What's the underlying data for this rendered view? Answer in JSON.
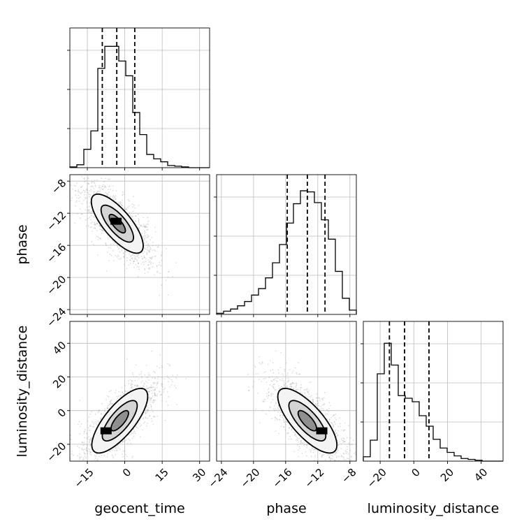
{
  "chart_data": {
    "type": "corner",
    "title": "",
    "parameters": [
      "geocent_time",
      "phase",
      "luminosity_distance"
    ],
    "axis_ranges": {
      "geocent_time": [
        -22,
        34
      ],
      "phase": [
        -24.6,
        -7.2
      ],
      "luminosity_distance": [
        -30,
        53
      ]
    },
    "ticks": {
      "geocent_time": [
        -15,
        0,
        15,
        30
      ],
      "phase": [
        -24,
        -20,
        -16,
        -12,
        -8
      ],
      "luminosity_distance": [
        -20,
        0,
        20,
        40
      ]
    },
    "tick_labels": {
      "geocent_time": [
        "−15",
        "0",
        "15",
        "30"
      ],
      "phase": [
        "−24",
        "−20",
        "−16",
        "−12",
        "−8"
      ],
      "luminosity_distance": [
        "−20",
        "0",
        "20",
        "40"
      ]
    },
    "quantiles": {
      "geocent_time": [
        -9.0,
        -3.2,
        4.0
      ],
      "phase": [
        -15.8,
        -13.3,
        -11.1
      ],
      "luminosity_distance": [
        -14.5,
        -5.5,
        9.0
      ]
    },
    "histograms": {
      "geocent_time": {
        "bin_edges": [
          -22,
          -19.2,
          -16.4,
          -13.6,
          -10.8,
          -8,
          -5.2,
          -2.4,
          0.4,
          3.2,
          6,
          8.8,
          11.6,
          14.4,
          17.2,
          20,
          22.8,
          25.6,
          28.4,
          31.2,
          34
        ],
        "counts": [
          1,
          4,
          25,
          50,
          135,
          165,
          165,
          145,
          125,
          75,
          45,
          18,
          12,
          8,
          3,
          2,
          1,
          0,
          0,
          0
        ]
      },
      "phase": {
        "bin_edges": [
          -24.6,
          -23.73,
          -22.86,
          -21.99,
          -21.12,
          -20.25,
          -19.38,
          -18.51,
          -17.64,
          -16.77,
          -15.9,
          -15.03,
          -14.16,
          -13.29,
          -12.42,
          -11.55,
          -10.68,
          -9.81,
          -8.94,
          -8.07,
          -7.2
        ],
        "counts": [
          1,
          3,
          5,
          8,
          12,
          18,
          24,
          34,
          48,
          65,
          85,
          103,
          115,
          114,
          104,
          88,
          70,
          40,
          15,
          4
        ]
      },
      "luminosity_distance": {
        "bin_edges": [
          -30,
          -25.85,
          -21.7,
          -17.55,
          -13.4,
          -9.25,
          -5.1,
          -0.95,
          3.2,
          7.35,
          11.5,
          15.65,
          19.8,
          23.95,
          28.1,
          32.25,
          36.4,
          40.55,
          44.7,
          48.85,
          53
        ],
        "counts": [
          5,
          24,
          100,
          135,
          110,
          75,
          72,
          68,
          52,
          40,
          25,
          15,
          10,
          6,
          3,
          2,
          1,
          0,
          0,
          0
        ]
      }
    },
    "histogram_ylim": {
      "geocent_time": [
        0,
        190
      ],
      "phase": [
        0,
        130
      ],
      "luminosity_distance": [
        0,
        160
      ]
    },
    "pairs": [
      {
        "x": "geocent_time",
        "y": "phase",
        "mean": [
          -3,
          -13.3
        ],
        "std": [
          6.5,
          2.3
        ],
        "correlation": -0.75,
        "contour_levels": [
          0.5,
          1.0,
          1.6
        ],
        "peak": [
          -3.5,
          -13.0
        ]
      },
      {
        "x": "geocent_time",
        "y": "luminosity_distance",
        "mean": [
          -2,
          -6
        ],
        "std": [
          7,
          12
        ],
        "correlation": 0.75,
        "contour_levels": [
          0.5,
          1.0,
          1.6
        ],
        "peak": [
          -7.5,
          -12.0
        ]
      },
      {
        "x": "phase",
        "y": "luminosity_distance",
        "mean": [
          -13.3,
          -6
        ],
        "std": [
          2.3,
          12
        ],
        "correlation": -0.75,
        "contour_levels": [
          0.5,
          1.0,
          1.6
        ],
        "peak": [
          -11.5,
          -12.0
        ]
      }
    ],
    "grid": true
  }
}
